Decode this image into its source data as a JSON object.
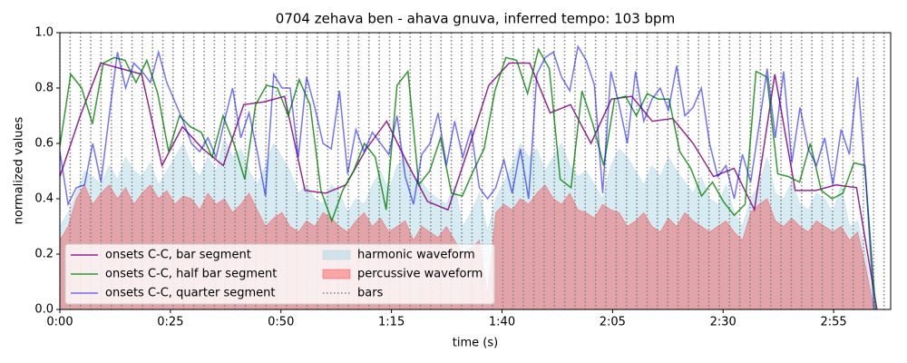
{
  "chart_data": {
    "type": "line",
    "title": "0704 zehava ben - ahava gnuva, inferred tempo: 103 bpm",
    "x_label": "time (s)",
    "y_label": "normalized values",
    "xlim": [
      0,
      187.9
    ],
    "ylim": [
      0,
      1
    ],
    "xticks": [
      {
        "value": 0,
        "label": "0:00"
      },
      {
        "value": 25,
        "label": "0:25"
      },
      {
        "value": 50,
        "label": "0:50"
      },
      {
        "value": 75,
        "label": "1:15"
      },
      {
        "value": 100,
        "label": "1:40"
      },
      {
        "value": 125,
        "label": "2:05"
      },
      {
        "value": 150,
        "label": "2:30"
      },
      {
        "value": 175,
        "label": "2:55"
      }
    ],
    "yticks": [
      {
        "value": 0,
        "label": "0.0"
      },
      {
        "value": 0.2,
        "label": "0.2"
      },
      {
        "value": 0.4,
        "label": "0.4"
      },
      {
        "value": 0.6,
        "label": "0.6"
      },
      {
        "value": 0.8,
        "label": "0.8"
      },
      {
        "value": 1,
        "label": "1.0"
      }
    ],
    "legend": "lower left",
    "legend_columns": 2,
    "series": [
      {
        "name": "onsets C-C, bar segment",
        "color": "#800080",
        "alpha": 0.85,
        "style": "line",
        "x": [
          0,
          4.62,
          9.24,
          13.86,
          18.48,
          23.1,
          27.72,
          32.34,
          36.96,
          41.58,
          46.2,
          50.82,
          55.44,
          60.06,
          64.68,
          69.3,
          73.92,
          78.54,
          83.16,
          87.78,
          92.4,
          97.02,
          101.64,
          106.26,
          110.88,
          115.5,
          120.12,
          124.74,
          129.36,
          133.98,
          138.6,
          143.22,
          147.84,
          152.46,
          157.08,
          161.7,
          166.32,
          170.94,
          175.56,
          180.18,
          184.8
        ],
        "values": [
          0.48,
          0.7,
          0.89,
          0.87,
          0.85,
          0.52,
          0.66,
          0.58,
          0.52,
          0.74,
          0.75,
          0.77,
          0.43,
          0.42,
          0.45,
          0.58,
          0.68,
          0.53,
          0.39,
          0.36,
          0.58,
          0.81,
          0.89,
          0.89,
          0.71,
          0.74,
          0.6,
          0.76,
          0.77,
          0.68,
          0.69,
          0.6,
          0.48,
          0.51,
          0.36,
          0.85,
          0.43,
          0.43,
          0.45,
          0.44,
          0.0
        ]
      },
      {
        "name": "onsets C-C, half bar segment",
        "color": "#008000",
        "alpha": 0.8,
        "style": "line",
        "x": [
          0,
          2.46,
          4.92,
          7.38,
          9.84,
          12.3,
          14.76,
          17.22,
          19.68,
          22.14,
          24.6,
          27.06,
          29.52,
          31.98,
          34.44,
          36.9,
          39.36,
          41.82,
          44.28,
          46.74,
          49.2,
          51.66,
          54.12,
          56.58,
          59.04,
          61.5,
          63.96,
          66.42,
          68.88,
          71.34,
          73.8,
          76.26,
          78.72,
          81.18,
          83.64,
          86.1,
          88.56,
          91.02,
          93.48,
          95.94,
          98.4,
          100.86,
          103.32,
          105.78,
          108.24,
          110.7,
          113.16,
          115.62,
          118.08,
          120.54,
          123,
          125.46,
          127.92,
          130.38,
          132.84,
          135.3,
          137.76,
          140.22,
          142.68,
          145.14,
          147.6,
          150.06,
          152.52,
          154.98,
          157.44,
          159.9,
          162.36,
          164.82,
          167.28,
          169.74,
          172.2,
          174.66,
          177.12,
          179.58,
          182.04,
          184.5
        ],
        "values": [
          0.59,
          0.85,
          0.8,
          0.67,
          0.89,
          0.91,
          0.9,
          0.82,
          0.9,
          0.78,
          0.57,
          0.7,
          0.66,
          0.64,
          0.55,
          0.7,
          0.6,
          0.47,
          0.74,
          0.81,
          0.8,
          0.7,
          0.83,
          0.74,
          0.43,
          0.32,
          0.43,
          0.5,
          0.6,
          0.55,
          0.36,
          0.81,
          0.86,
          0.45,
          0.5,
          0.62,
          0.42,
          0.41,
          0.5,
          0.58,
          0.79,
          0.91,
          0.9,
          0.78,
          0.94,
          0.87,
          0.47,
          0.44,
          0.79,
          0.67,
          0.52,
          0.76,
          0.77,
          0.7,
          0.78,
          0.76,
          0.76,
          0.57,
          0.51,
          0.41,
          0.46,
          0.39,
          0.34,
          0.38,
          0.86,
          0.84,
          0.49,
          0.48,
          0.46,
          0.6,
          0.43,
          0.4,
          0.42,
          0.53,
          0.52,
          0.0
        ]
      },
      {
        "name": "onsets C-C, quarter segment",
        "color": "#0000ff",
        "alpha": 0.55,
        "style": "line",
        "x": [
          0,
          1.86,
          3.72,
          5.58,
          7.44,
          9.3,
          11.16,
          13.02,
          14.88,
          16.74,
          18.6,
          20.46,
          22.32,
          24.18,
          26.04,
          27.9,
          29.76,
          31.62,
          33.48,
          35.34,
          37.2,
          39.06,
          40.92,
          42.78,
          44.64,
          46.5,
          48.36,
          50.22,
          52.08,
          53.94,
          55.8,
          57.66,
          59.52,
          61.38,
          63.24,
          65.1,
          66.96,
          68.82,
          70.68,
          72.54,
          74.4,
          76.26,
          78.12,
          79.98,
          81.84,
          83.7,
          85.56,
          87.42,
          89.28,
          91.14,
          93,
          94.86,
          96.72,
          98.58,
          100.44,
          102.3,
          104.16,
          106.02,
          107.88,
          109.74,
          111.6,
          113.46,
          115.32,
          117.18,
          119.04,
          120.9,
          122.76,
          124.62,
          126.48,
          128.34,
          130.2,
          132.06,
          133.92,
          135.78,
          137.64,
          139.5,
          141.36,
          143.22,
          145.08,
          146.94,
          148.8,
          150.66,
          152.52,
          154.38,
          156.24,
          158.1,
          159.96,
          161.82,
          163.68,
          165.54,
          167.4,
          169.26,
          171.12,
          172.98,
          174.84,
          176.7,
          178.56,
          180.42,
          182.28,
          184.14
        ],
        "values": [
          0.57,
          0.38,
          0.44,
          0.45,
          0.6,
          0.46,
          0.7,
          0.93,
          0.8,
          0.89,
          0.86,
          0.82,
          0.93,
          0.82,
          0.75,
          0.68,
          0.6,
          0.57,
          0.62,
          0.55,
          0.68,
          0.8,
          0.62,
          0.71,
          0.57,
          0.41,
          0.85,
          0.8,
          0.8,
          0.55,
          0.84,
          0.73,
          0.6,
          0.58,
          0.79,
          0.49,
          0.65,
          0.57,
          0.64,
          0.6,
          0.56,
          0.7,
          0.48,
          0.38,
          0.56,
          0.6,
          0.71,
          0.52,
          0.68,
          0.55,
          0.65,
          0.44,
          0.4,
          0.44,
          0.54,
          0.42,
          0.58,
          0.4,
          0.85,
          0.91,
          0.93,
          0.84,
          0.79,
          0.95,
          0.9,
          0.81,
          0.42,
          0.86,
          0.74,
          0.6,
          0.86,
          0.68,
          0.76,
          0.8,
          0.72,
          0.88,
          0.7,
          0.73,
          0.8,
          0.6,
          0.48,
          0.52,
          0.4,
          0.56,
          0.46,
          0.66,
          0.87,
          0.62,
          0.86,
          0.53,
          0.73,
          0.58,
          0.52,
          0.62,
          0.45,
          0.65,
          0.56,
          0.84,
          0.47,
          0.0
        ]
      },
      {
        "name": "harmonic waveform",
        "color": "#add8e6",
        "alpha": 0.5,
        "style": "area",
        "x": [
          0,
          1.86,
          3.72,
          5.58,
          7.44,
          9.3,
          11.16,
          13.02,
          14.88,
          16.74,
          18.6,
          20.46,
          22.32,
          24.18,
          26.04,
          27.9,
          29.76,
          31.62,
          33.48,
          35.34,
          37.2,
          39.06,
          40.92,
          42.78,
          44.64,
          46.5,
          48.36,
          50.22,
          52.08,
          53.94,
          55.8,
          57.66,
          59.52,
          61.38,
          63.24,
          65.1,
          66.96,
          68.82,
          70.68,
          72.54,
          74.4,
          76.26,
          78.12,
          79.98,
          81.84,
          83.7,
          85.56,
          87.42,
          89.28,
          91.14,
          93,
          94.86,
          96.72,
          98.58,
          100.44,
          102.3,
          104.16,
          106.02,
          107.88,
          109.74,
          111.6,
          113.46,
          115.32,
          117.18,
          119.04,
          120.9,
          122.76,
          124.62,
          126.48,
          128.34,
          130.2,
          132.06,
          133.92,
          135.78,
          137.64,
          139.5,
          141.36,
          143.22,
          145.08,
          146.94,
          148.8,
          150.66,
          152.52,
          154.38,
          156.24,
          158.1,
          159.96,
          161.82,
          163.68,
          165.54,
          167.4,
          169.26,
          171.12,
          172.98,
          174.84,
          176.7,
          178.56,
          180.42,
          182.28,
          184.14
        ],
        "values": [
          0.3,
          0.35,
          0.42,
          0.5,
          0.48,
          0.45,
          0.52,
          0.47,
          0.55,
          0.5,
          0.48,
          0.53,
          0.45,
          0.5,
          0.55,
          0.6,
          0.52,
          0.48,
          0.55,
          0.5,
          0.62,
          0.55,
          0.58,
          0.5,
          0.45,
          0.52,
          0.6,
          0.55,
          0.5,
          0.42,
          0.45,
          0.4,
          0.38,
          0.45,
          0.42,
          0.35,
          0.4,
          0.38,
          0.45,
          0.5,
          0.43,
          0.52,
          0.55,
          0.48,
          0.46,
          0.42,
          0.4,
          0.38,
          0.45,
          0.3,
          0.35,
          0.42,
          0.28,
          0.4,
          0.46,
          0.52,
          0.6,
          0.55,
          0.58,
          0.5,
          0.55,
          0.6,
          0.52,
          0.48,
          0.5,
          0.45,
          0.4,
          0.52,
          0.58,
          0.55,
          0.5,
          0.45,
          0.52,
          0.48,
          0.55,
          0.5,
          0.46,
          0.42,
          0.48,
          0.4,
          0.38,
          0.45,
          0.35,
          0.3,
          0.4,
          0.45,
          0.55,
          0.42,
          0.4,
          0.46,
          0.38,
          0.36,
          0.42,
          0.4,
          0.35,
          0.45,
          0.3,
          0.32,
          0.2,
          0.0
        ]
      },
      {
        "name": "percussive waveform",
        "color": "#ff0000",
        "alpha": 0.3,
        "style": "area",
        "x": [
          0,
          1.86,
          3.72,
          5.58,
          7.44,
          9.3,
          11.16,
          13.02,
          14.88,
          16.74,
          18.6,
          20.46,
          22.32,
          24.18,
          26.04,
          27.9,
          29.76,
          31.62,
          33.48,
          35.34,
          37.2,
          39.06,
          40.92,
          42.78,
          44.64,
          46.5,
          48.36,
          50.22,
          52.08,
          53.94,
          55.8,
          57.66,
          59.52,
          61.38,
          63.24,
          65.1,
          66.96,
          68.82,
          70.68,
          72.54,
          74.4,
          76.26,
          78.12,
          79.98,
          81.84,
          83.7,
          85.56,
          87.42,
          89.28,
          91.14,
          93,
          94.86,
          96.72,
          98.58,
          100.44,
          102.3,
          104.16,
          106.02,
          107.88,
          109.74,
          111.6,
          113.46,
          115.32,
          117.18,
          119.04,
          120.9,
          122.76,
          124.62,
          126.48,
          128.34,
          130.2,
          132.06,
          133.92,
          135.78,
          137.64,
          139.5,
          141.36,
          143.22,
          145.08,
          146.94,
          148.8,
          150.66,
          152.52,
          154.38,
          156.24,
          158.1,
          159.96,
          161.82,
          163.68,
          165.54,
          167.4,
          169.26,
          171.12,
          172.98,
          174.84,
          176.7,
          178.56,
          180.42,
          182.28,
          184.14
        ],
        "values": [
          0.25,
          0.3,
          0.4,
          0.45,
          0.38,
          0.42,
          0.45,
          0.4,
          0.44,
          0.38,
          0.42,
          0.45,
          0.4,
          0.43,
          0.38,
          0.41,
          0.4,
          0.36,
          0.42,
          0.38,
          0.4,
          0.35,
          0.38,
          0.42,
          0.36,
          0.3,
          0.33,
          0.35,
          0.3,
          0.28,
          0.32,
          0.3,
          0.35,
          0.33,
          0.3,
          0.28,
          0.32,
          0.35,
          0.3,
          0.33,
          0.28,
          0.3,
          0.32,
          0.25,
          0.3,
          0.28,
          0.26,
          0.3,
          0.25,
          0.2,
          0.22,
          0.25,
          0.05,
          0.35,
          0.38,
          0.36,
          0.4,
          0.38,
          0.42,
          0.45,
          0.4,
          0.38,
          0.42,
          0.36,
          0.35,
          0.33,
          0.38,
          0.36,
          0.35,
          0.3,
          0.32,
          0.35,
          0.3,
          0.28,
          0.33,
          0.3,
          0.35,
          0.32,
          0.3,
          0.28,
          0.3,
          0.32,
          0.28,
          0.25,
          0.35,
          0.38,
          0.4,
          0.32,
          0.3,
          0.33,
          0.3,
          0.28,
          0.32,
          0.3,
          0.28,
          0.3,
          0.25,
          0.28,
          0.15,
          0.0
        ]
      },
      {
        "name": "bars",
        "color": "#808080",
        "alpha": 1,
        "style": "vlines",
        "x": [
          0,
          2.33,
          4.66,
          6.99,
          9.32,
          11.65,
          13.98,
          16.31,
          18.64,
          20.97,
          23.3,
          25.63,
          27.96,
          30.29,
          32.62,
          34.95,
          37.28,
          39.61,
          41.94,
          44.27,
          46.6,
          48.93,
          51.26,
          53.59,
          55.92,
          58.25,
          60.58,
          62.91,
          65.24,
          67.57,
          69.9,
          72.23,
          74.56,
          76.89,
          79.22,
          81.55,
          83.88,
          86.21,
          88.54,
          90.87,
          93.2,
          95.53,
          97.86,
          100.19,
          102.52,
          104.85,
          107.18,
          109.51,
          111.84,
          114.17,
          116.5,
          118.83,
          121.16,
          123.49,
          125.82,
          128.15,
          130.48,
          132.81,
          135.14,
          137.47,
          139.8,
          142.13,
          144.46,
          146.79,
          149.12,
          151.45,
          153.78,
          156.11,
          158.44,
          160.77,
          163.1,
          165.43,
          167.76,
          170.09,
          172.42,
          174.75,
          177.08,
          179.41,
          181.74,
          184.07,
          186.4
        ]
      }
    ]
  }
}
